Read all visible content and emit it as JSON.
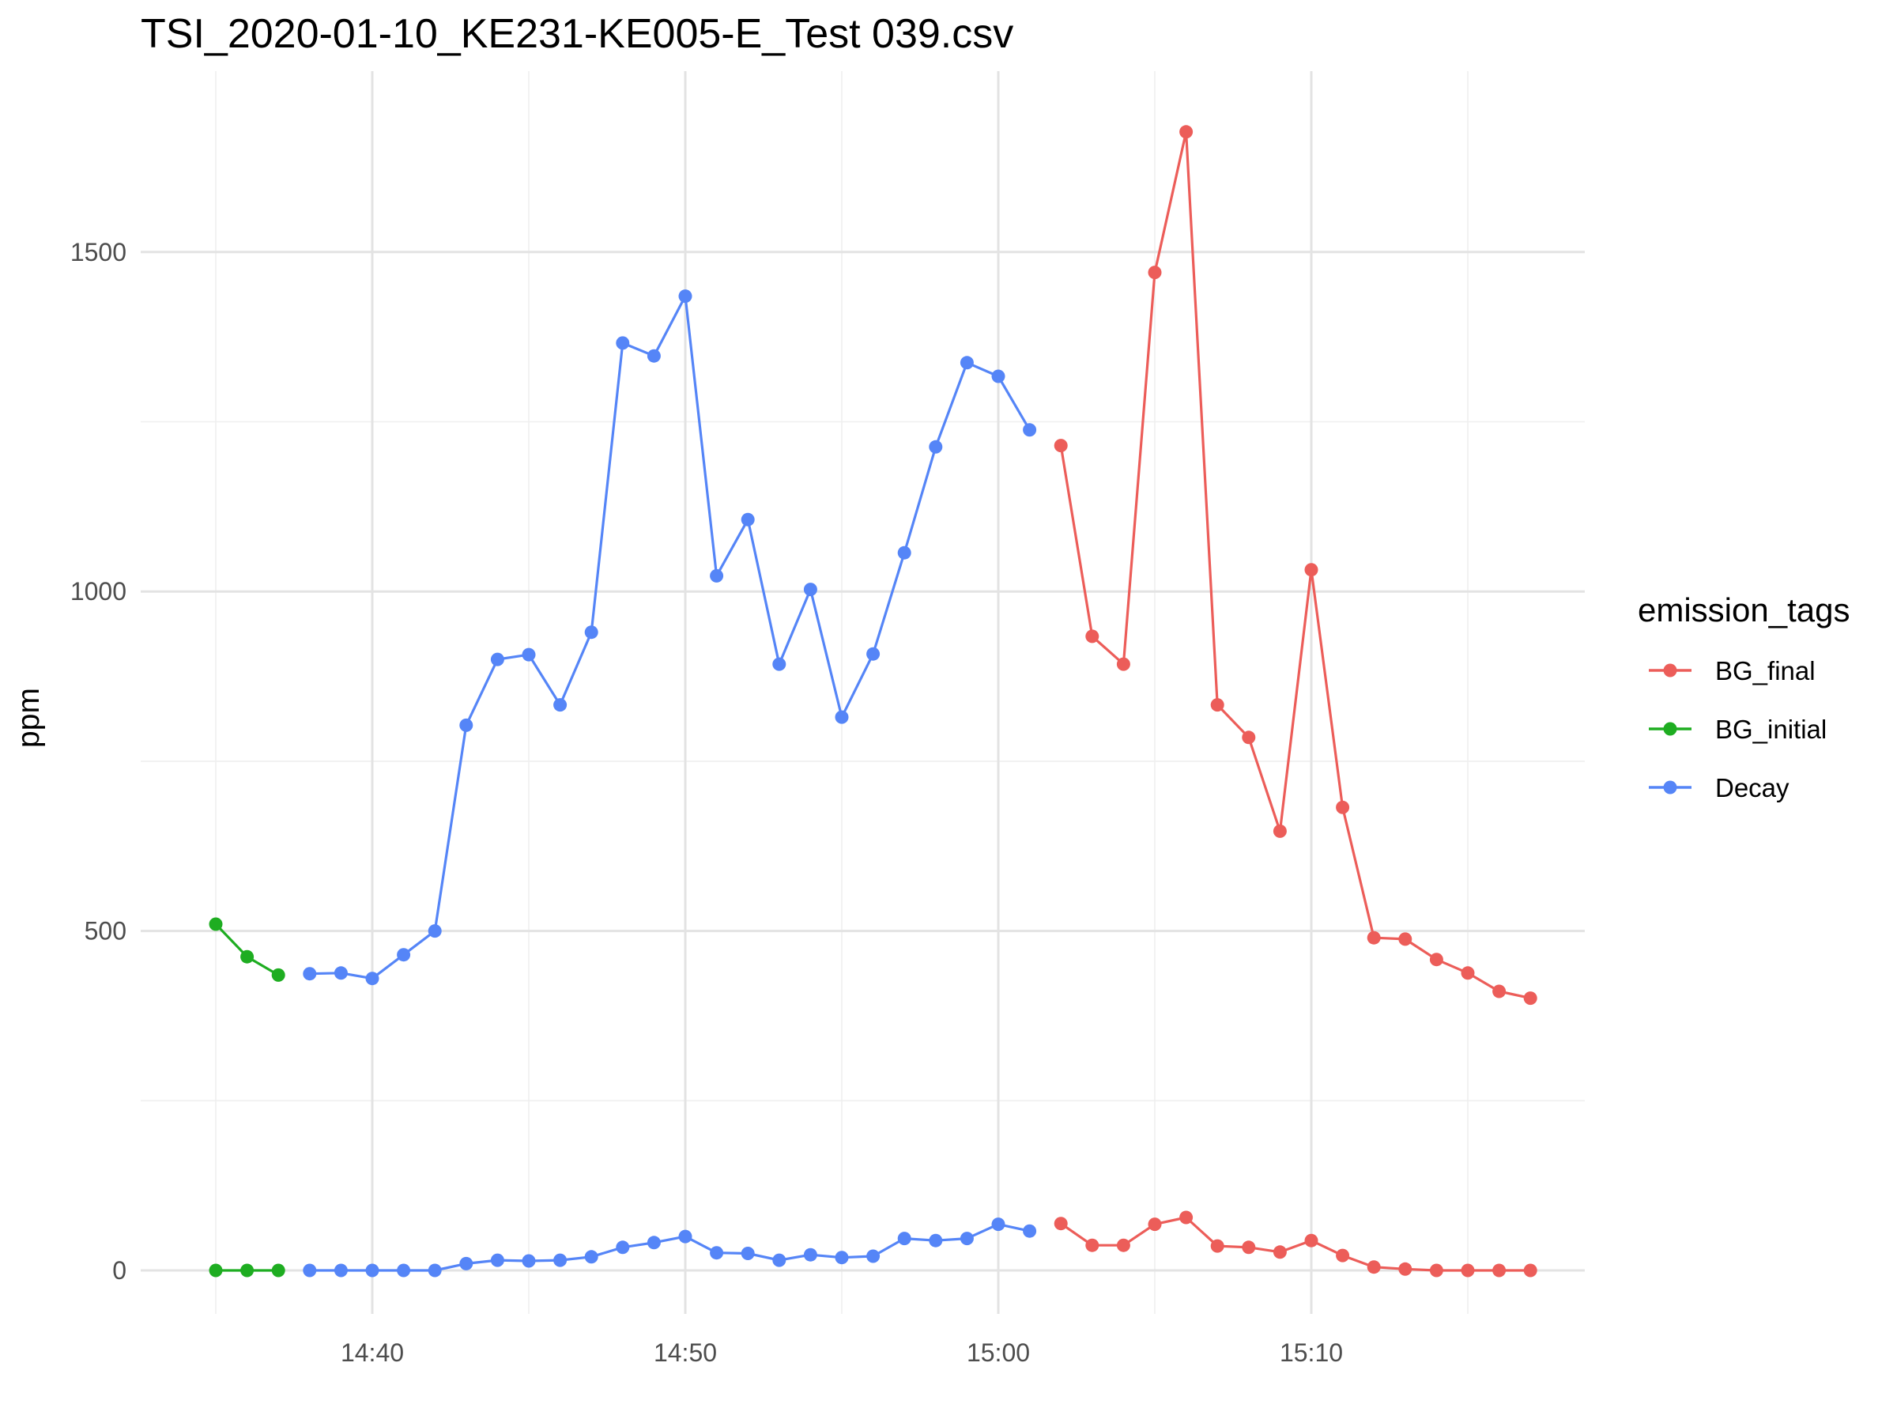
{
  "chart_data": {
    "type": "line",
    "title": "TSI_2020-01-10_KE231-KE005-E_Test 039.csv",
    "xlabel": "",
    "ylabel": "ppm",
    "x_ticks": [
      "14:40",
      "14:50",
      "15:00",
      "15:10"
    ],
    "y_ticks": [
      "0",
      "500",
      "1000",
      "1500"
    ],
    "ylim": [
      -50,
      1730
    ],
    "grid": true,
    "legend": {
      "title": "emission_tags",
      "placement": "right",
      "entries": [
        "BG_final",
        "BG_initial",
        "Decay"
      ]
    },
    "series": [
      {
        "name": "BG_initial",
        "color": "#1ead21",
        "segments": [
          {
            "x": [
              "14:35",
              "14:36",
              "14:37"
            ],
            "values": [
              510,
              462,
              435
            ]
          },
          {
            "x": [
              "14:35",
              "14:36",
              "14:37"
            ],
            "values": [
              0,
              0,
              0
            ]
          }
        ]
      },
      {
        "name": "Decay",
        "color": "#5585f7",
        "segments": [
          {
            "x": [
              "14:38",
              "14:39",
              "14:40",
              "14:41",
              "14:42",
              "14:43",
              "14:44",
              "14:45",
              "14:46",
              "14:47",
              "14:48",
              "14:49",
              "14:50",
              "14:51",
              "14:52",
              "14:53",
              "14:54",
              "14:55",
              "14:56",
              "14:57",
              "14:58",
              "14:59",
              "15:00",
              "15:01"
            ],
            "values": [
              437,
              438,
              430,
              465,
              500,
              803,
              900,
              907,
              833,
              940,
              1366,
              1347,
              1435,
              1023,
              1106,
              893,
              1003,
              815,
              908,
              1057,
              1213,
              1337,
              1317,
              1238
            ]
          },
          {
            "x": [
              "14:38",
              "14:39",
              "14:40",
              "14:41",
              "14:42",
              "14:43",
              "14:44",
              "14:45",
              "14:46",
              "14:47",
              "14:48",
              "14:49",
              "14:50",
              "14:51",
              "14:52",
              "14:53",
              "14:54",
              "14:55",
              "14:56",
              "14:57",
              "14:58",
              "14:59",
              "15:00",
              "15:01"
            ],
            "values": [
              0,
              0,
              0,
              0,
              0,
              10,
              15,
              14,
              15,
              20,
              34,
              41,
              50,
              26,
              25,
              15,
              23,
              19,
              21,
              47,
              44,
              47,
              68,
              58
            ]
          }
        ]
      },
      {
        "name": "BG_final",
        "color": "#ec5d59",
        "segments": [
          {
            "x": [
              "15:02",
              "15:03",
              "15:04",
              "15:05",
              "15:06",
              "15:07",
              "15:08",
              "15:09",
              "15:10",
              "15:11",
              "15:12",
              "15:13",
              "15:14",
              "15:15",
              "15:16",
              "15:17"
            ],
            "values": [
              1215,
              934,
              893,
              1470,
              1677,
              833,
              785,
              647,
              1032,
              682,
              490,
              488,
              458,
              438,
              411,
              401
            ]
          },
          {
            "x": [
              "15:02",
              "15:03",
              "15:04",
              "15:05",
              "15:06",
              "15:07",
              "15:08",
              "15:09",
              "15:10",
              "15:11",
              "15:12",
              "15:13",
              "15:14",
              "15:15",
              "15:16",
              "15:17"
            ],
            "values": [
              69,
              37,
              37,
              68,
              78,
              36,
              34,
              27,
              44,
              22,
              5,
              2,
              0,
              0,
              0,
              0
            ]
          }
        ]
      }
    ]
  }
}
